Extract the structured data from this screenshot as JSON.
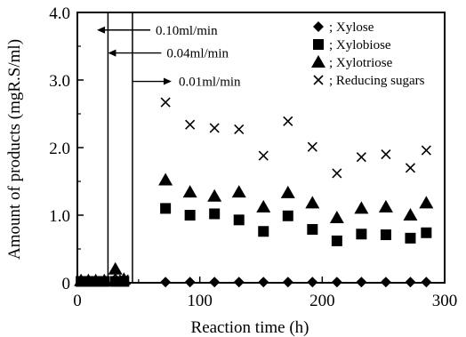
{
  "chart_data": {
    "type": "scatter",
    "title": "",
    "xlabel": "Reaction time (h)",
    "ylabel": "Amount of products (mgR.S/ml)",
    "xlim": [
      0,
      300
    ],
    "ylim": [
      0,
      4.0
    ],
    "x_ticks": [
      "0",
      "100",
      "200",
      "300"
    ],
    "x_tick_values": [
      0,
      100,
      200,
      300
    ],
    "y_ticks": [
      "0",
      "1.0",
      "2.0",
      "3.0",
      "4.0"
    ],
    "y_tick_values": [
      0,
      1.0,
      2.0,
      3.0,
      4.0
    ],
    "grid": false,
    "legend_position": "top-right",
    "series": [
      {
        "name": "; Xylose",
        "marker": "diamond",
        "x": [
          3,
          9,
          15,
          22,
          31,
          38,
          72,
          92,
          112,
          132,
          152,
          172,
          192,
          212,
          232,
          252,
          272,
          285
        ],
        "y": [
          0.02,
          0.02,
          0.02,
          0.02,
          0.02,
          0.02,
          0.01,
          0.01,
          0.01,
          0.01,
          0.01,
          0.01,
          0.01,
          0.01,
          0.01,
          0.01,
          0.01,
          0.01
        ]
      },
      {
        "name": "; Xylobiose",
        "marker": "square",
        "x": [
          3,
          9,
          15,
          22,
          31,
          38,
          72,
          92,
          112,
          132,
          152,
          172,
          192,
          212,
          232,
          252,
          272,
          285
        ],
        "y": [
          0.02,
          0.02,
          0.02,
          0.02,
          0.02,
          0.02,
          1.1,
          1.0,
          1.02,
          0.93,
          0.76,
          0.99,
          0.79,
          0.62,
          0.72,
          0.71,
          0.66,
          0.74
        ]
      },
      {
        "name": "; Xylotriose",
        "marker": "triangle",
        "x": [
          3,
          9,
          15,
          22,
          31,
          38,
          72,
          92,
          112,
          132,
          152,
          172,
          192,
          212,
          232,
          252,
          272,
          285
        ],
        "y": [
          0.03,
          0.03,
          0.03,
          0.03,
          0.2,
          0.05,
          1.52,
          1.34,
          1.28,
          1.34,
          1.12,
          1.33,
          1.18,
          0.96,
          1.1,
          1.12,
          1.0,
          1.18
        ]
      },
      {
        "name": "; Reducing sugars",
        "marker": "x",
        "x": [
          3,
          9,
          15,
          22,
          31,
          38,
          72,
          92,
          112,
          132,
          152,
          172,
          192,
          212,
          232,
          252,
          272,
          285
        ],
        "y": [
          0.02,
          0.02,
          0.02,
          0.02,
          0.12,
          0.05,
          2.67,
          2.34,
          2.29,
          2.27,
          1.88,
          2.39,
          2.01,
          1.62,
          1.86,
          1.9,
          1.7,
          1.96
        ]
      }
    ],
    "flow_markers": [
      {
        "label": "0.10ml/min",
        "x": 16,
        "arrow": "left",
        "y": 3.74
      },
      {
        "label": "0.04ml/min",
        "x": 25,
        "arrow": "left",
        "y": 3.4
      },
      {
        "label": "0.01ml/min",
        "x": 45,
        "arrow": "right",
        "y": 2.98
      }
    ],
    "flow_lines_x": [
      25,
      45
    ]
  }
}
